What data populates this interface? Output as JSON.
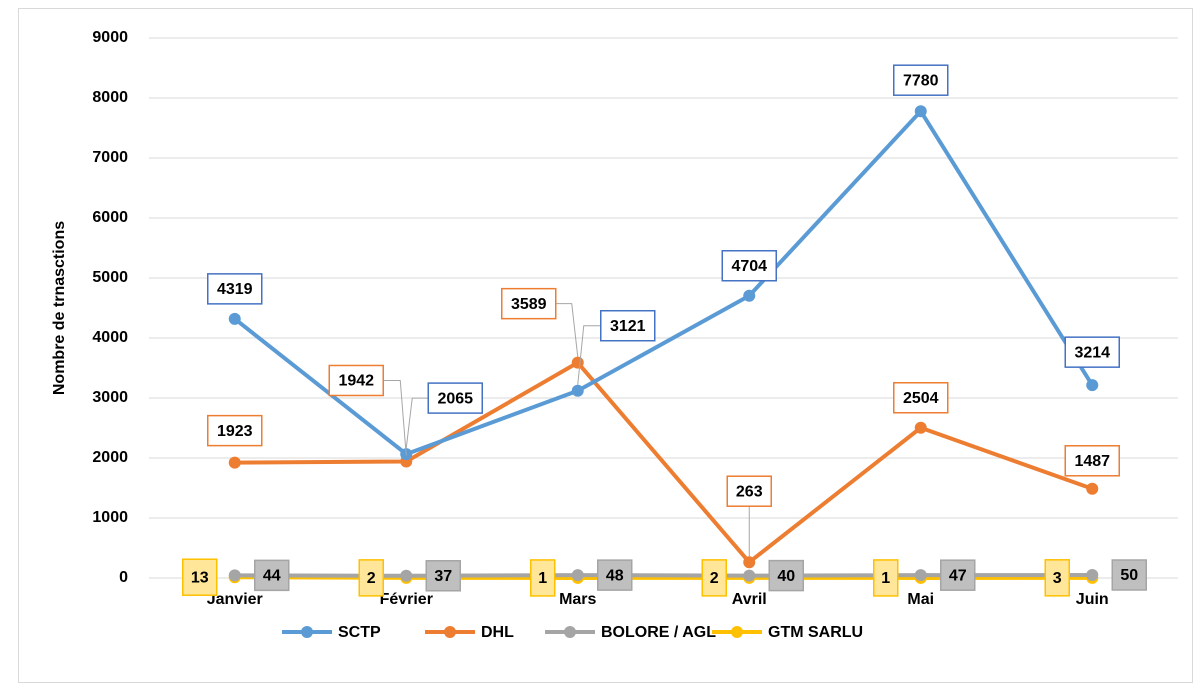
{
  "chart_data": {
    "type": "line",
    "y_label": "Nombre de trnasctions",
    "categories": [
      "Janvier",
      "Février",
      "Mars",
      "Avril",
      "Mai",
      "Juin"
    ],
    "series": [
      {
        "name": "SCTP",
        "color": "#5b9bd5",
        "values": [
          4319,
          2065,
          3121,
          4704,
          7780,
          3214
        ]
      },
      {
        "name": "DHL",
        "color": "#ed7d31",
        "values": [
          1923,
          1942,
          3589,
          263,
          2504,
          1487
        ]
      },
      {
        "name": "BOLORE / AGL",
        "color": "#a5a5a5",
        "values": [
          44,
          37,
          48,
          40,
          47,
          50
        ]
      },
      {
        "name": "GTM SARLU",
        "color": "#ffc000",
        "values": [
          13,
          2,
          1,
          2,
          1,
          3
        ]
      }
    ],
    "ylim": [
      0,
      9000
    ],
    "yticks": [
      0,
      1000,
      2000,
      3000,
      4000,
      5000,
      6000,
      7000,
      8000,
      9000
    ],
    "grid": true,
    "legend": "bottom"
  }
}
